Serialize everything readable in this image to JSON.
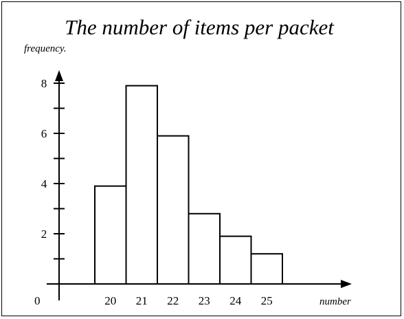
{
  "chart_data": {
    "type": "bar",
    "title": "The number of items per packet",
    "xlabel": "number",
    "ylabel": "frequency.",
    "origin_label": "0",
    "categories": [
      "20",
      "21",
      "22",
      "23",
      "24",
      "25"
    ],
    "values": [
      3.9,
      7.9,
      5.9,
      2.8,
      1.9,
      1.2
    ],
    "ylim": [
      0,
      9
    ],
    "y_ticks": [
      2,
      4,
      6,
      8
    ],
    "y_minor_ticks": [
      1,
      3,
      5,
      7
    ],
    "grid": false,
    "legend": "none",
    "bar_fill": "#ffffff",
    "stroke_color": "#000000"
  }
}
